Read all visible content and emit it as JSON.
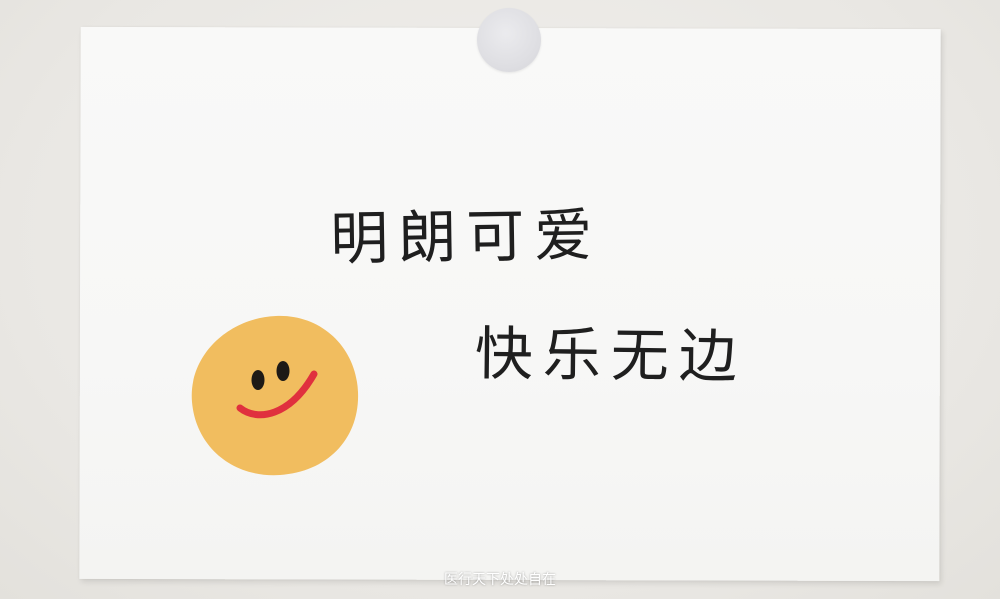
{
  "card": {
    "line_1": "明朗可爱",
    "line_2": "快乐无边"
  },
  "watermark": "医行天下处处自在",
  "colors": {
    "wall": "#eceae6",
    "card": "#f8f8f7",
    "pin": "#dfdfe3",
    "smiley_face": "#f1bd5f",
    "smiley_mouth": "#e0303e",
    "ink": "#1f1f1f"
  },
  "icons": {
    "smiley": "smiley-face-icon",
    "pin": "round-sticker-pin"
  }
}
